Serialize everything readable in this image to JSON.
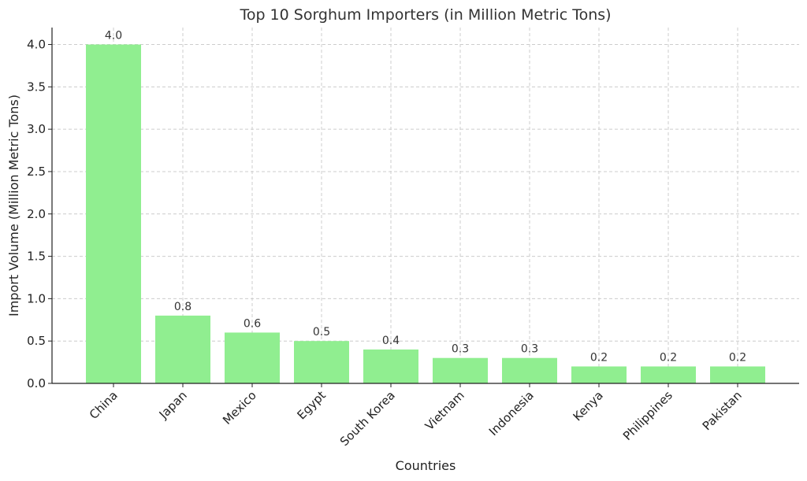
{
  "chart_data": {
    "type": "bar",
    "title": "Top 10 Sorghum Importers (in Million Metric Tons)",
    "xlabel": "Countries",
    "ylabel": "Import Volume (Million Metric Tons)",
    "categories": [
      "China",
      "Japan",
      "Mexico",
      "Egypt",
      "South Korea",
      "Vietnam",
      "Indonesia",
      "Kenya",
      "Philippines",
      "Pakistan"
    ],
    "values": [
      4.0,
      0.8,
      0.6,
      0.5,
      0.4,
      0.3,
      0.3,
      0.2,
      0.2,
      0.2
    ],
    "value_labels": [
      "4.0",
      "0.8",
      "0.6",
      "0.5",
      "0.4",
      "0.3",
      "0.3",
      "0.2",
      "0.2",
      "0.2"
    ],
    "yticks": [
      0.0,
      0.5,
      1.0,
      1.5,
      2.0,
      2.5,
      3.0,
      3.5,
      4.0
    ],
    "ytick_labels": [
      "0.0",
      "0.5",
      "1.0",
      "1.5",
      "2.0",
      "2.5",
      "3.0",
      "3.5",
      "4.0"
    ],
    "ylim": [
      0,
      4.2
    ],
    "grid": true,
    "bar_color": "#90ee90"
  }
}
